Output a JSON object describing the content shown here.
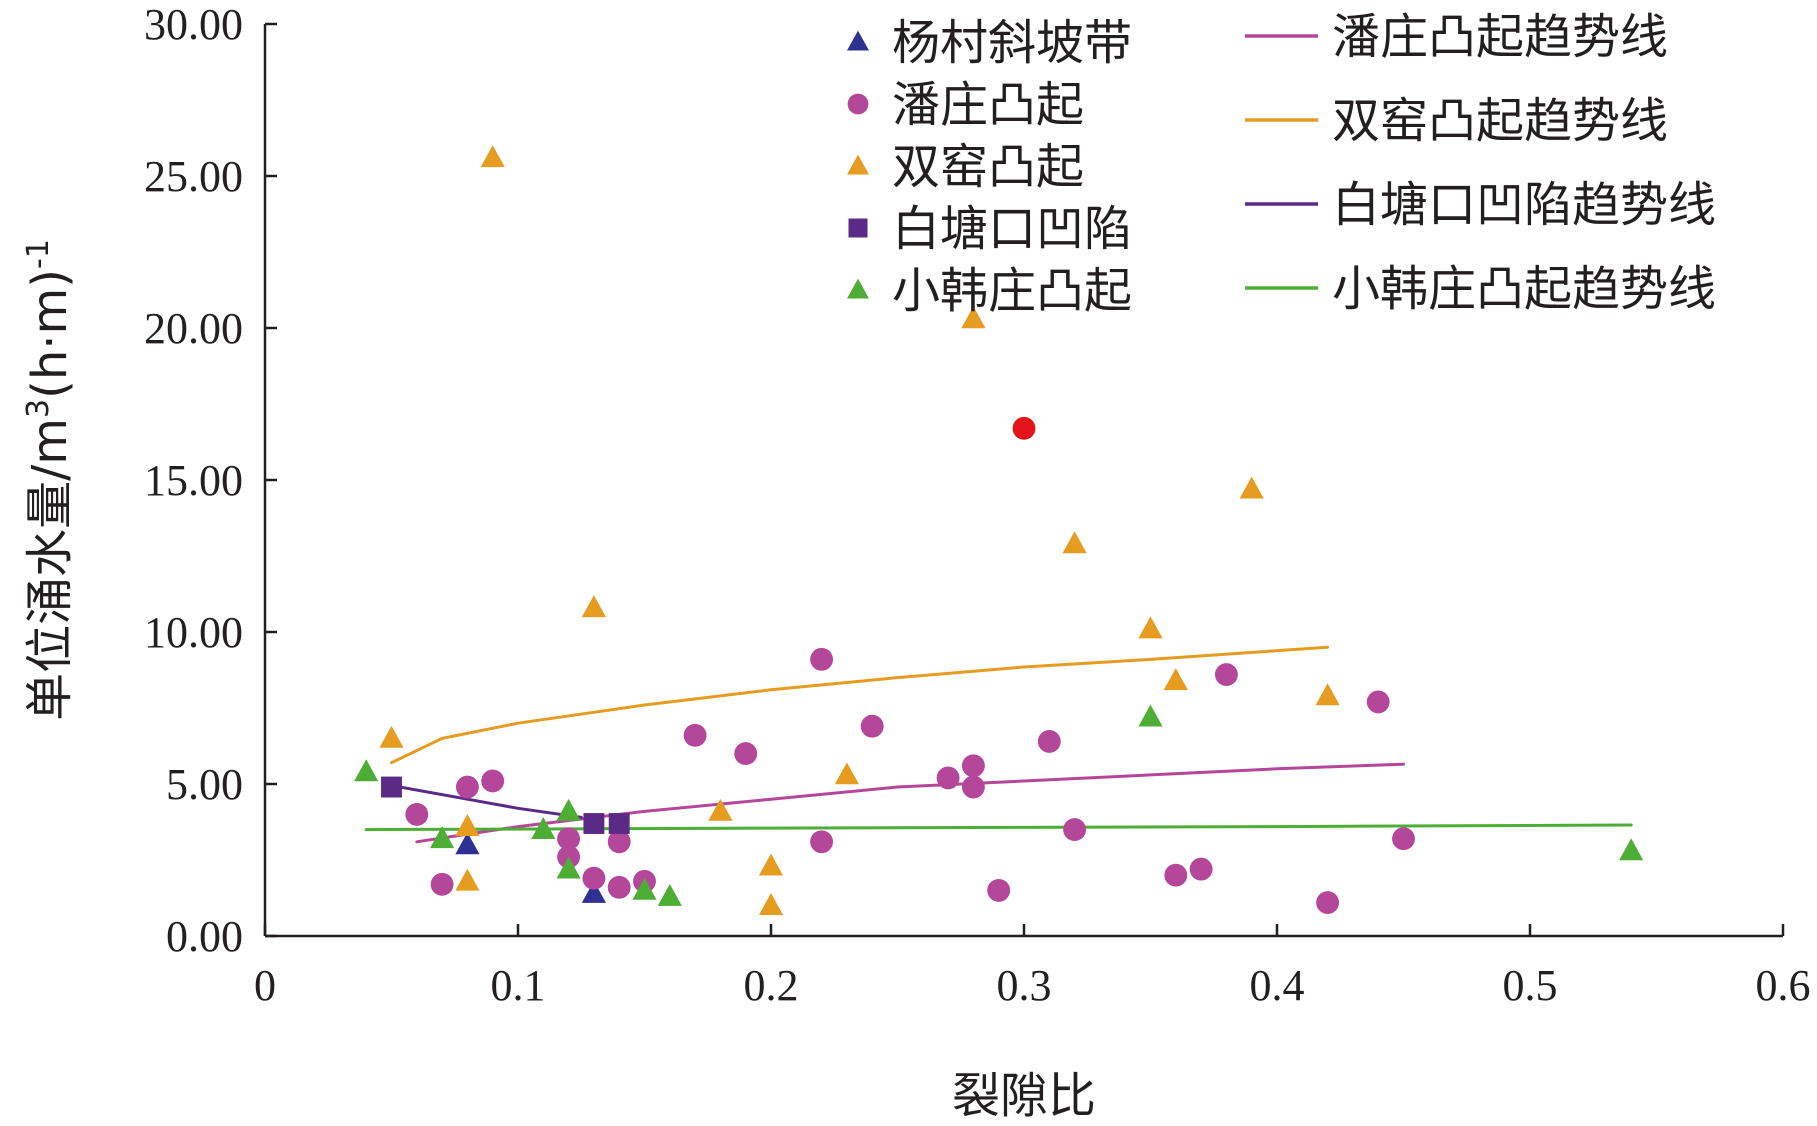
{
  "chart_data": {
    "type": "scatter",
    "xlabel": "裂隙比",
    "ylabel": "单位涌水量/m³(h·m)⁻¹",
    "ylabel_parts": {
      "main": "单位涌水量/m",
      "sup1": "3",
      "mid": "(h·m)",
      "sup2": "-1"
    },
    "xlim": [
      0,
      0.6
    ],
    "ylim": [
      0,
      30
    ],
    "xticks": [
      "0",
      "0.1",
      "0.2",
      "0.3",
      "0.4",
      "0.5",
      "0.6"
    ],
    "yticks": [
      "0.00",
      "5.00",
      "10.00",
      "15.00",
      "20.00",
      "25.00",
      "30.00"
    ],
    "grid": false,
    "legend_position": "top-right",
    "series": [
      {
        "name": "杨村斜坡带",
        "marker": "triangle",
        "color": "#2e3192",
        "points": [
          [
            0.08,
            3.0
          ],
          [
            0.13,
            1.4
          ]
        ]
      },
      {
        "name": "潘庄凸起",
        "marker": "circle",
        "color": "#b5479b",
        "points": [
          [
            0.06,
            4.0
          ],
          [
            0.07,
            1.7
          ],
          [
            0.08,
            4.9
          ],
          [
            0.09,
            5.1
          ],
          [
            0.12,
            3.2
          ],
          [
            0.12,
            2.6
          ],
          [
            0.13,
            1.9
          ],
          [
            0.14,
            3.1
          ],
          [
            0.14,
            1.6
          ],
          [
            0.15,
            1.8
          ],
          [
            0.17,
            6.6
          ],
          [
            0.19,
            6.0
          ],
          [
            0.22,
            9.1
          ],
          [
            0.22,
            3.1
          ],
          [
            0.24,
            6.9
          ],
          [
            0.27,
            5.2
          ],
          [
            0.28,
            5.6
          ],
          [
            0.28,
            4.9
          ],
          [
            0.29,
            1.5
          ],
          [
            0.31,
            6.4
          ],
          [
            0.32,
            3.5
          ],
          [
            0.36,
            2.0
          ],
          [
            0.37,
            2.2
          ],
          [
            0.38,
            8.6
          ],
          [
            0.42,
            1.1
          ],
          [
            0.44,
            7.7
          ],
          [
            0.45,
            3.2
          ]
        ]
      },
      {
        "name": "双窑凸起",
        "marker": "triangle",
        "color": "#e69b21",
        "points": [
          [
            0.05,
            6.5
          ],
          [
            0.08,
            3.6
          ],
          [
            0.08,
            1.8
          ],
          [
            0.09,
            25.6
          ],
          [
            0.13,
            10.8
          ],
          [
            0.18,
            4.1
          ],
          [
            0.2,
            2.3
          ],
          [
            0.2,
            1.0
          ],
          [
            0.23,
            5.3
          ],
          [
            0.28,
            20.3
          ],
          [
            0.32,
            12.9
          ],
          [
            0.35,
            10.1
          ],
          [
            0.36,
            8.4
          ],
          [
            0.39,
            14.7
          ],
          [
            0.42,
            7.9
          ]
        ]
      },
      {
        "name": "白塘口凹陷",
        "marker": "square",
        "color": "#5b2a86",
        "points": [
          [
            0.05,
            4.9
          ],
          [
            0.13,
            3.7
          ],
          [
            0.14,
            3.7
          ]
        ]
      },
      {
        "name": "小韩庄凸起",
        "marker": "triangle",
        "color": "#4dae35",
        "points": [
          [
            0.04,
            5.4
          ],
          [
            0.07,
            3.2
          ],
          [
            0.11,
            3.5
          ],
          [
            0.12,
            4.1
          ],
          [
            0.12,
            2.2
          ],
          [
            0.15,
            1.5
          ],
          [
            0.16,
            1.3
          ],
          [
            0.35,
            7.2
          ],
          [
            0.54,
            2.8
          ]
        ]
      }
    ],
    "trendlines": [
      {
        "name": "潘庄凸起趋势线",
        "color": "#b5479b",
        "points": [
          [
            0.06,
            3.1
          ],
          [
            0.1,
            3.6
          ],
          [
            0.15,
            4.1
          ],
          [
            0.2,
            4.5
          ],
          [
            0.25,
            4.9
          ],
          [
            0.3,
            5.1
          ],
          [
            0.35,
            5.3
          ],
          [
            0.4,
            5.5
          ],
          [
            0.45,
            5.65
          ]
        ]
      },
      {
        "name": "双窑凸起趋势线",
        "color": "#e69b21",
        "points": [
          [
            0.05,
            5.7
          ],
          [
            0.07,
            6.5
          ],
          [
            0.1,
            7.0
          ],
          [
            0.15,
            7.6
          ],
          [
            0.2,
            8.1
          ],
          [
            0.25,
            8.5
          ],
          [
            0.3,
            8.85
          ],
          [
            0.35,
            9.1
          ],
          [
            0.42,
            9.5
          ]
        ]
      },
      {
        "name": "白塘口凹陷趋势线",
        "color": "#5b2a86",
        "points": [
          [
            0.05,
            4.95
          ],
          [
            0.08,
            4.5
          ],
          [
            0.1,
            4.2
          ],
          [
            0.125,
            3.9
          ]
        ]
      },
      {
        "name": "小韩庄凸起趋势线",
        "color": "#4dae35",
        "points": [
          [
            0.04,
            3.5
          ],
          [
            0.2,
            3.55
          ],
          [
            0.4,
            3.6
          ],
          [
            0.54,
            3.65
          ]
        ]
      }
    ],
    "highlight_point": {
      "color": "#e5141c",
      "point": [
        0.3,
        16.7
      ]
    }
  }
}
